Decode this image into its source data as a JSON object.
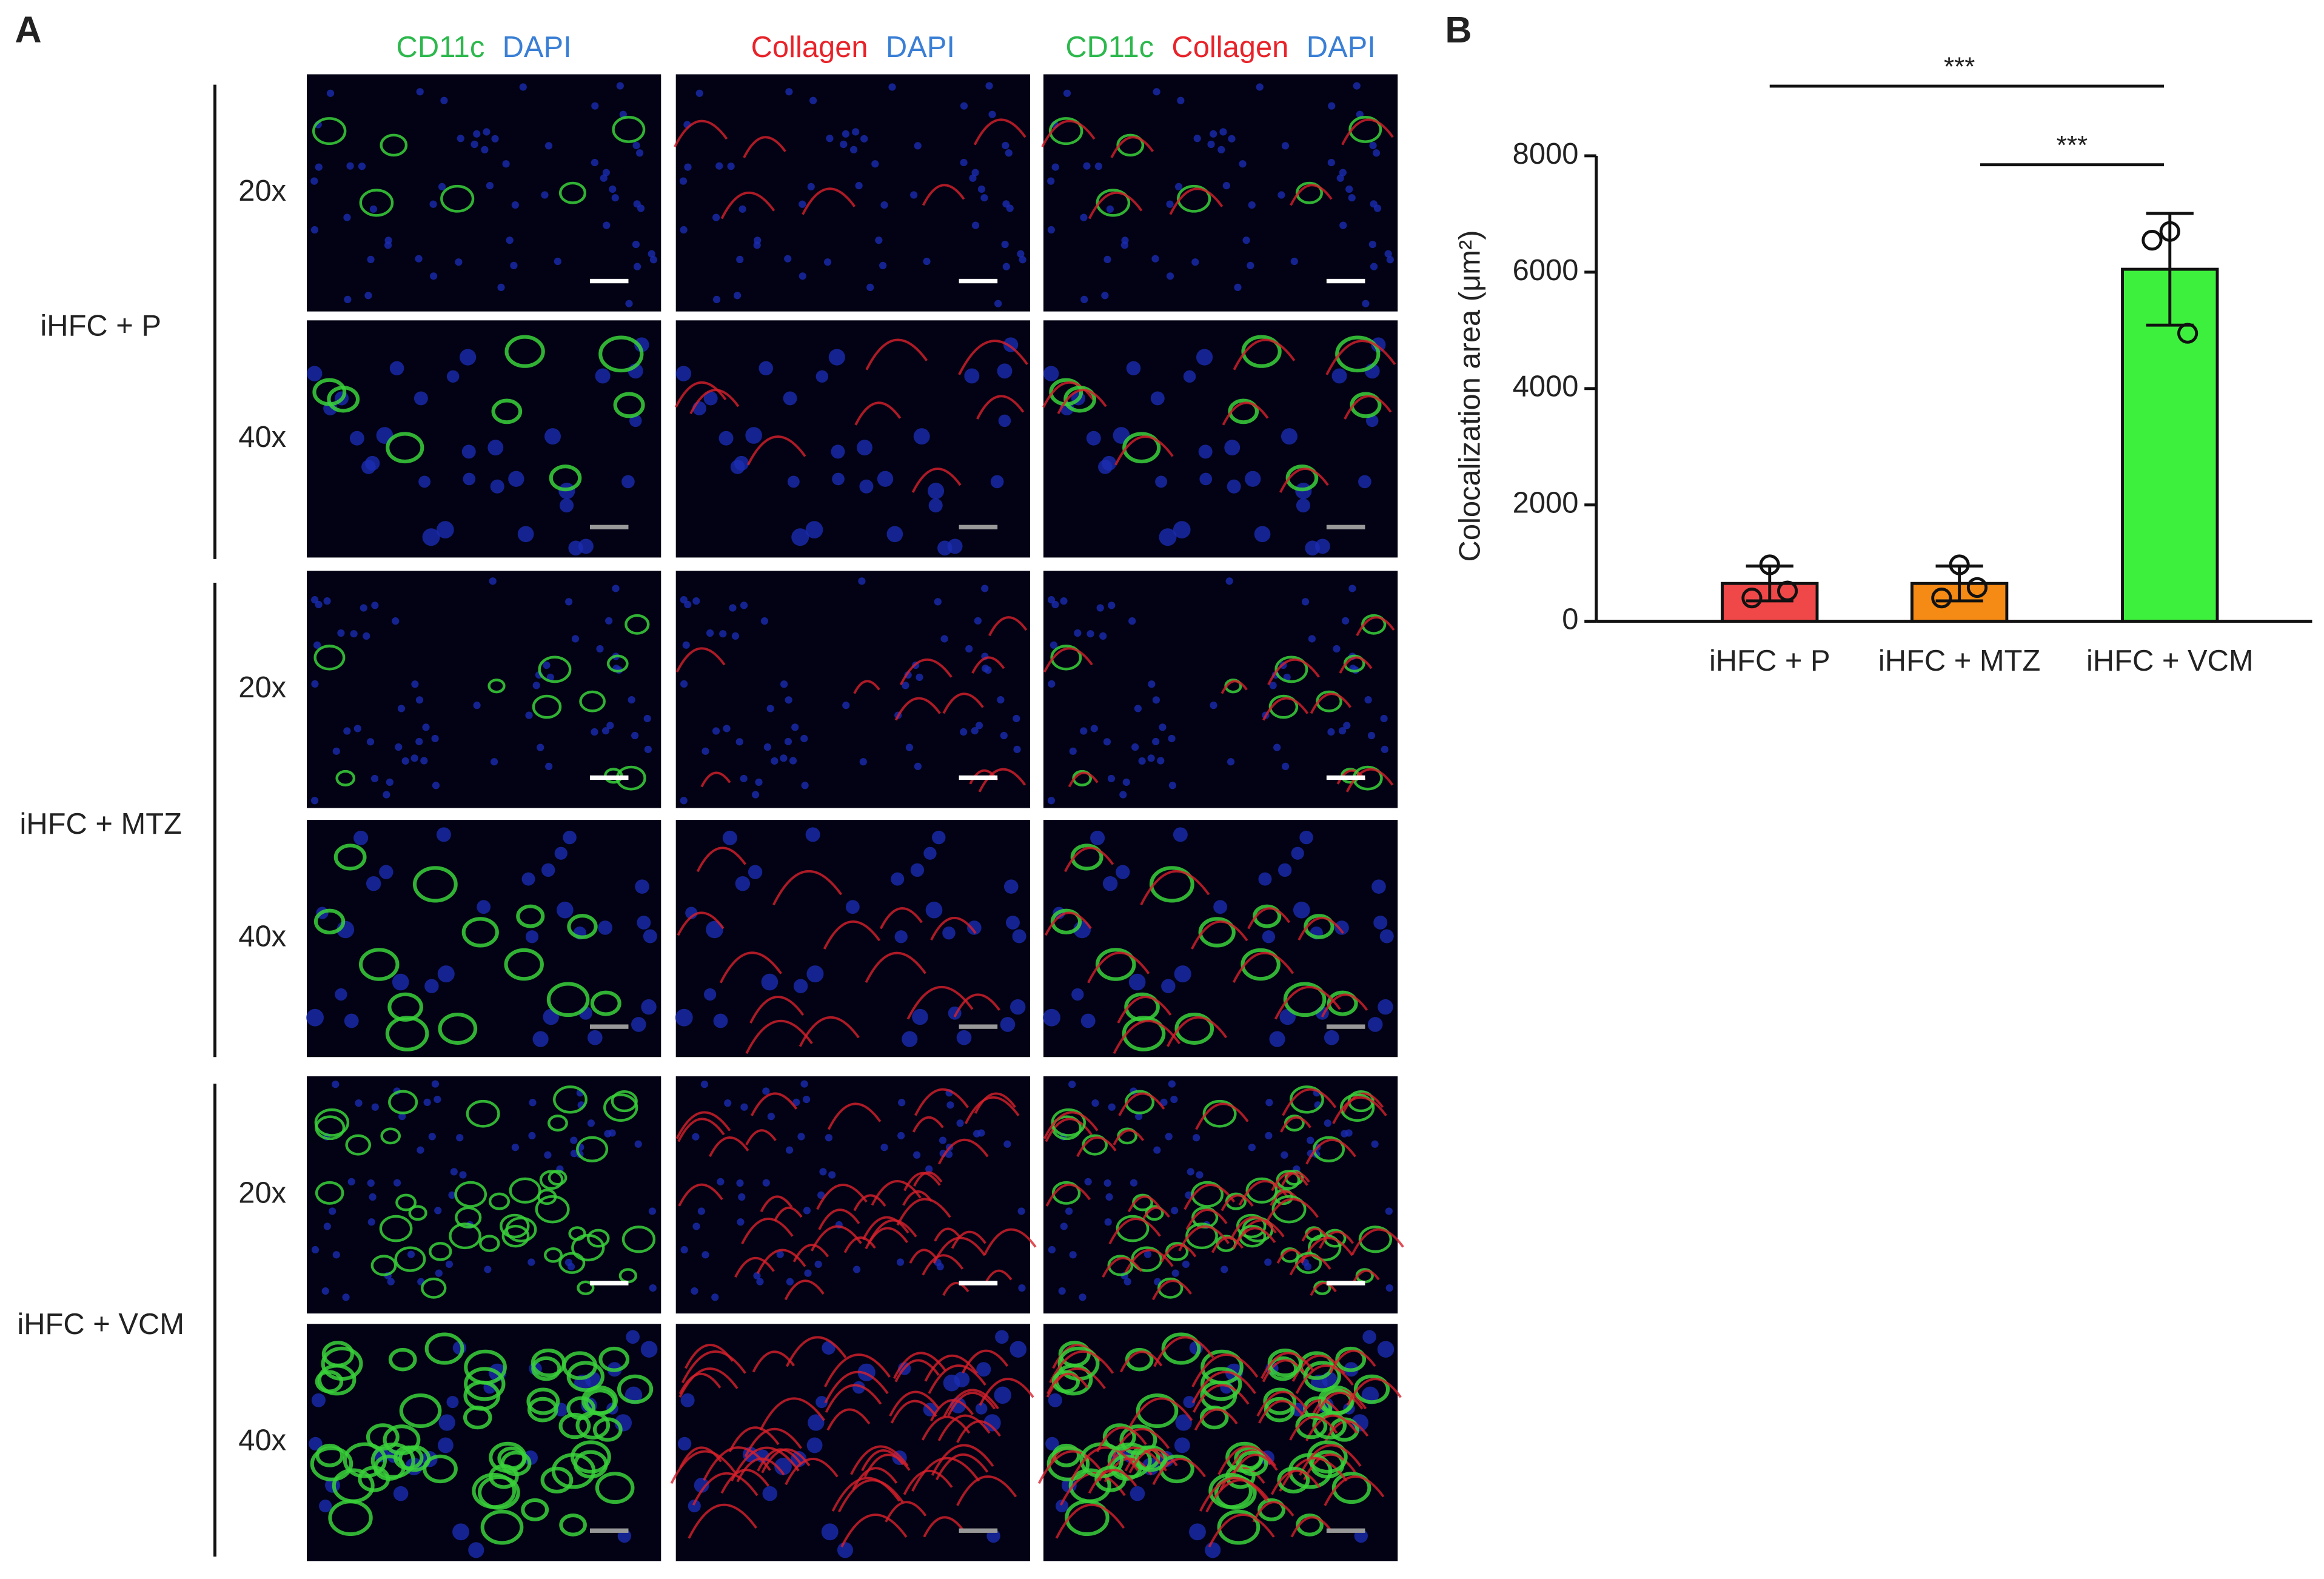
{
  "panel_a": {
    "label": "A",
    "columns": [
      [
        {
          "text": "CD11c",
          "color": "#2db84d"
        },
        {
          "text": "DAPI",
          "color": "#3a7fd5"
        }
      ],
      [
        {
          "text": "Collagen",
          "color": "#e8232a"
        },
        {
          "text": "DAPI",
          "color": "#3a7fd5"
        }
      ],
      [
        {
          "text": "CD11c",
          "color": "#2db84d"
        },
        {
          "text": "Collagen",
          "color": "#e8232a"
        },
        {
          "text": "DAPI",
          "color": "#3a7fd5"
        }
      ]
    ],
    "groups": [
      {
        "name": "iHFC + P",
        "magnifications": [
          "20x",
          "40x"
        ]
      },
      {
        "name": "iHFC + MTZ",
        "magnifications": [
          "20x",
          "40x"
        ]
      },
      {
        "name": "iHFC + VCM",
        "magnifications": [
          "20x",
          "40x"
        ]
      }
    ]
  },
  "chart_data": {
    "type": "bar",
    "label": "B",
    "y_label": "Colocalization area (μm²)",
    "categories": [
      "iHFC + P",
      "iHFC + MTZ",
      "iHFC + VCM"
    ],
    "values": [
      650,
      650,
      6050
    ],
    "errors": [
      300,
      300,
      960
    ],
    "points": [
      [
        970,
        400,
        520
      ],
      [
        970,
        400,
        580
      ],
      [
        6700,
        6550,
        4950
      ]
    ],
    "colors": [
      "#f04848",
      "#f58a14",
      "#3ef03e"
    ],
    "ylim": [
      0,
      8000
    ],
    "yticks": [
      0,
      2000,
      4000,
      6000,
      8000
    ],
    "significance": [
      "***",
      "***"
    ]
  }
}
